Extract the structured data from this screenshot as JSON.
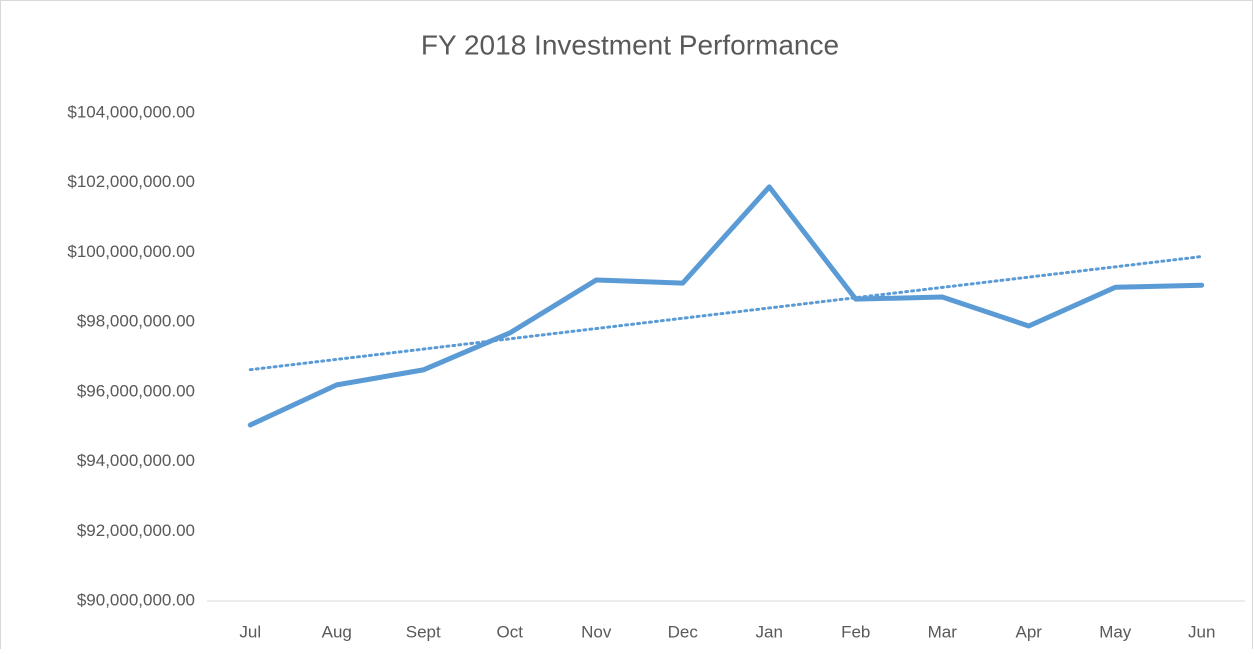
{
  "chart_data": {
    "type": "line",
    "title": "FY 2018 Investment Performance",
    "categories": [
      "Jul",
      "Aug",
      "Sept",
      "Oct",
      "Nov",
      "Dec",
      "Jan",
      "Feb",
      "Mar",
      "Apr",
      "May",
      "Jun"
    ],
    "series": [
      {
        "color": "#5b9bd5",
        "values": [
          95050000,
          96200000,
          96630000,
          97690000,
          99210000,
          99120000,
          101880000,
          98660000,
          98720000,
          97890000,
          99000000,
          99060000
        ]
      }
    ],
    "trendline": "linear",
    "ylim": [
      90000000,
      104000000
    ],
    "yticks": [
      {
        "value": 90000000,
        "label": "$90,000,000.00"
      },
      {
        "value": 92000000,
        "label": "$92,000,000.00"
      },
      {
        "value": 94000000,
        "label": "$94,000,000.00"
      },
      {
        "value": 96000000,
        "label": "$96,000,000.00"
      },
      {
        "value": 98000000,
        "label": "$98,000,000.00"
      },
      {
        "value": 100000000,
        "label": "$100,000,000.00"
      },
      {
        "value": 102000000,
        "label": "$102,000,000.00"
      },
      {
        "value": 104000000,
        "label": "$104,000,000.00"
      }
    ],
    "grid": false
  }
}
